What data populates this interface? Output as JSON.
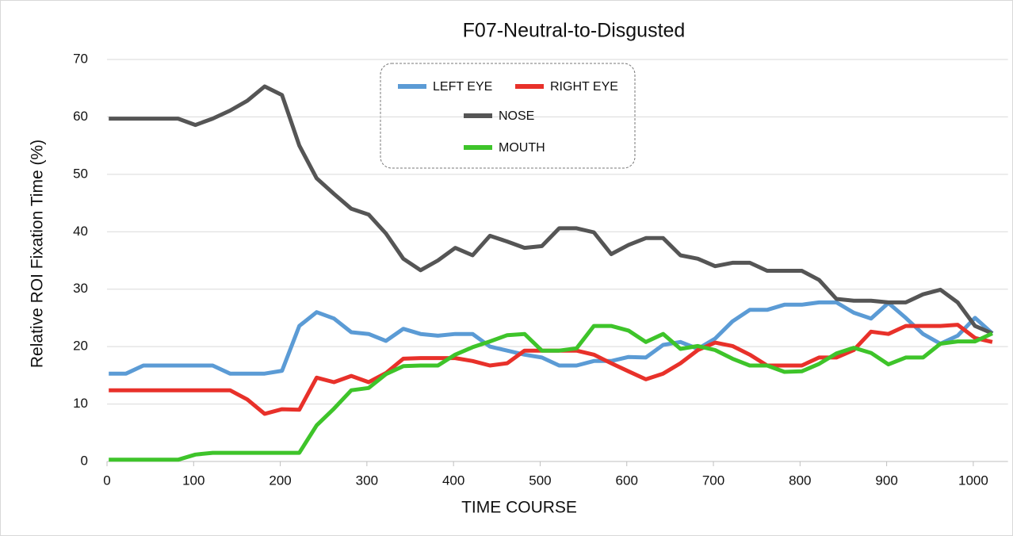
{
  "chart_data": {
    "type": "line",
    "title": "F07-Neutral-to-Disgusted",
    "xlabel": "TIME  COURSE",
    "ylabel": "Relative  ROI  Fixation  Time  (%)",
    "x": [
      2,
      22,
      42,
      62,
      82,
      102,
      122,
      142,
      162,
      182,
      202,
      222,
      242,
      262,
      282,
      302,
      322,
      342,
      362,
      382,
      402,
      422,
      442,
      462,
      482,
      502,
      522,
      542,
      562,
      582,
      602,
      622,
      642,
      662,
      682,
      702,
      722,
      742,
      762,
      782,
      802,
      822,
      842,
      862,
      882,
      902,
      922,
      942,
      962,
      982,
      1002,
      1022
    ],
    "series": [
      {
        "name": "LEFT EYE",
        "color": "#5b9bd5",
        "values": [
          15.3,
          15.3,
          16.7,
          16.7,
          16.7,
          16.7,
          16.7,
          15.3,
          15.3,
          15.3,
          15.8,
          23.6,
          26,
          24.9,
          22.5,
          22.2,
          21,
          23.1,
          22.2,
          21.9,
          22.2,
          22.2,
          20,
          19.3,
          18.6,
          18.1,
          16.7,
          16.7,
          17.5,
          17.5,
          18.2,
          18.1,
          20.3,
          20.8,
          19.6,
          21.4,
          24.4,
          26.4,
          26.4,
          27.3,
          27.3,
          27.7,
          27.7,
          25.9,
          24.9,
          27.6,
          25,
          22.2,
          20.5,
          21.9,
          25,
          22.3
        ]
      },
      {
        "name": "RIGHT EYE",
        "color": "#e8312a",
        "values": [
          12.4,
          12.4,
          12.4,
          12.4,
          12.4,
          12.4,
          12.4,
          12.4,
          10.8,
          8.3,
          9.1,
          9,
          14.6,
          13.8,
          14.9,
          13.8,
          15.4,
          17.9,
          18,
          18,
          18,
          17.5,
          16.7,
          17.1,
          19.3,
          19.3,
          19.3,
          19.3,
          18.6,
          17.1,
          15.7,
          14.3,
          15.3,
          17.1,
          19.4,
          20.7,
          20.1,
          18.6,
          16.7,
          16.7,
          16.7,
          18.1,
          18.1,
          19.4,
          22.6,
          22.2,
          23.6,
          23.6,
          23.6,
          23.8,
          21.5,
          20.8
        ]
      },
      {
        "name": "NOSE",
        "color": "#555555",
        "values": [
          59.7,
          59.7,
          59.7,
          59.7,
          59.7,
          58.6,
          59.7,
          61.1,
          62.8,
          65.3,
          63.8,
          55,
          49.3,
          46.6,
          44,
          43,
          39.7,
          35.3,
          33.3,
          35,
          37.2,
          35.9,
          39.3,
          38.3,
          37.2,
          37.5,
          40.6,
          40.6,
          39.9,
          36.1,
          37.7,
          38.9,
          38.9,
          35.9,
          35.3,
          34,
          34.6,
          34.6,
          33.2,
          33.2,
          33.2,
          31.6,
          28.3,
          28,
          28,
          27.7,
          27.7,
          29.1,
          29.9,
          27.7,
          23.6,
          22.3
        ]
      },
      {
        "name": "MOUTH",
        "color": "#3ec42a",
        "values": [
          0.3,
          0.3,
          0.3,
          0.3,
          0.3,
          1.2,
          1.5,
          1.5,
          1.5,
          1.5,
          1.5,
          1.5,
          6.3,
          9.2,
          12.4,
          12.8,
          15.2,
          16.6,
          16.7,
          16.7,
          18.6,
          19.9,
          20.9,
          22,
          22.2,
          19.3,
          19.3,
          19.7,
          23.6,
          23.6,
          22.8,
          20.8,
          22.2,
          19.6,
          20.1,
          19.4,
          17.9,
          16.7,
          16.7,
          15.6,
          15.7,
          17,
          18.8,
          19.8,
          18.9,
          16.9,
          18.1,
          18.1,
          20.5,
          20.9,
          20.9,
          22.3
        ]
      }
    ],
    "xlim": [
      0,
      1040
    ],
    "xticks": [
      0,
      100,
      200,
      300,
      400,
      500,
      600,
      700,
      800,
      900,
      1000
    ],
    "ylim": [
      0,
      70
    ],
    "yticks": [
      0,
      10,
      20,
      30,
      40,
      50,
      60,
      70
    ],
    "grid": true,
    "legend": "top"
  }
}
